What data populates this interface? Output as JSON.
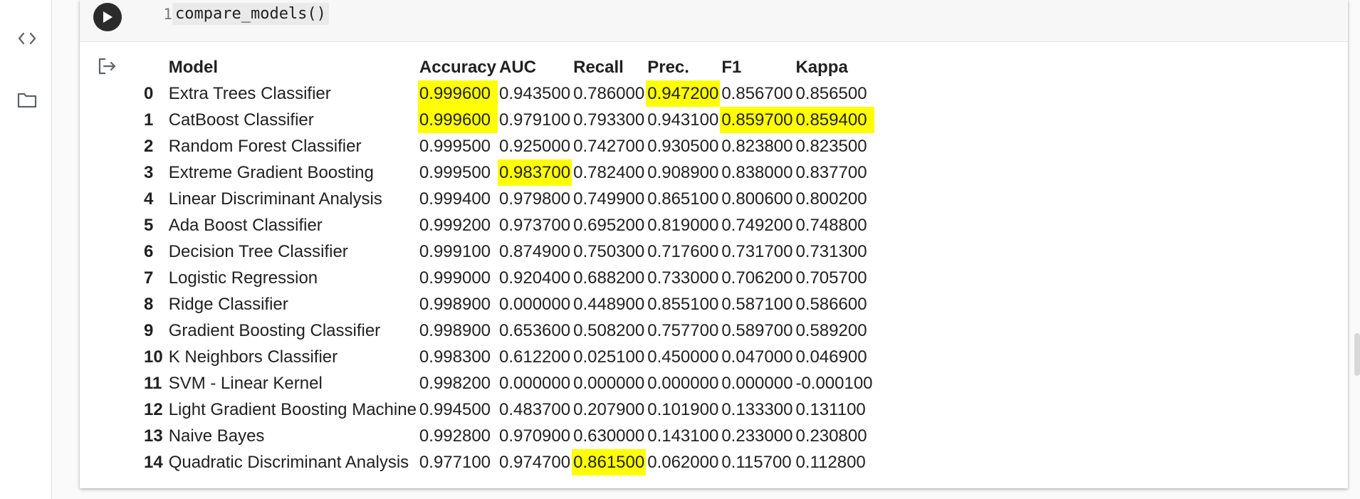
{
  "cell": {
    "line_number": "1",
    "code": "compare_models()"
  },
  "sidebar": {
    "icons": [
      "code-icon",
      "folder-icon"
    ]
  },
  "table": {
    "columns": [
      "Model",
      "Accuracy",
      "AUC",
      "Recall",
      "Prec.",
      "F1",
      "Kappa"
    ],
    "highlight_color": "#ffff00",
    "rows": [
      {
        "idx": "0",
        "model": "Extra Trees Classifier",
        "values": [
          "0.999600",
          "0.943500",
          "0.786000",
          "0.947200",
          "0.856700",
          "0.856500"
        ],
        "hl": [
          0,
          3
        ]
      },
      {
        "idx": "1",
        "model": "CatBoost Classifier",
        "values": [
          "0.999600",
          "0.979100",
          "0.793300",
          "0.943100",
          "0.859700",
          "0.859400"
        ],
        "hl": [
          0,
          4,
          5
        ]
      },
      {
        "idx": "2",
        "model": "Random Forest Classifier",
        "values": [
          "0.999500",
          "0.925000",
          "0.742700",
          "0.930500",
          "0.823800",
          "0.823500"
        ],
        "hl": []
      },
      {
        "idx": "3",
        "model": "Extreme Gradient Boosting",
        "values": [
          "0.999500",
          "0.983700",
          "0.782400",
          "0.908900",
          "0.838000",
          "0.837700"
        ],
        "hl": [
          1
        ]
      },
      {
        "idx": "4",
        "model": "Linear Discriminant Analysis",
        "values": [
          "0.999400",
          "0.979800",
          "0.749900",
          "0.865100",
          "0.800600",
          "0.800200"
        ],
        "hl": []
      },
      {
        "idx": "5",
        "model": "Ada Boost Classifier",
        "values": [
          "0.999200",
          "0.973700",
          "0.695200",
          "0.819000",
          "0.749200",
          "0.748800"
        ],
        "hl": []
      },
      {
        "idx": "6",
        "model": "Decision Tree Classifier",
        "values": [
          "0.999100",
          "0.874900",
          "0.750300",
          "0.717600",
          "0.731700",
          "0.731300"
        ],
        "hl": []
      },
      {
        "idx": "7",
        "model": "Logistic Regression",
        "values": [
          "0.999000",
          "0.920400",
          "0.688200",
          "0.733000",
          "0.706200",
          "0.705700"
        ],
        "hl": []
      },
      {
        "idx": "8",
        "model": "Ridge Classifier",
        "values": [
          "0.998900",
          "0.000000",
          "0.448900",
          "0.855100",
          "0.587100",
          "0.586600"
        ],
        "hl": []
      },
      {
        "idx": "9",
        "model": "Gradient Boosting Classifier",
        "values": [
          "0.998900",
          "0.653600",
          "0.508200",
          "0.757700",
          "0.589700",
          "0.589200"
        ],
        "hl": []
      },
      {
        "idx": "10",
        "model": "K Neighbors Classifier",
        "values": [
          "0.998300",
          "0.612200",
          "0.025100",
          "0.450000",
          "0.047000",
          "0.046900"
        ],
        "hl": []
      },
      {
        "idx": "11",
        "model": "SVM - Linear Kernel",
        "values": [
          "0.998200",
          "0.000000",
          "0.000000",
          "0.000000",
          "0.000000",
          "-0.000100"
        ],
        "hl": []
      },
      {
        "idx": "12",
        "model": "Light Gradient Boosting Machine",
        "values": [
          "0.994500",
          "0.483700",
          "0.207900",
          "0.101900",
          "0.133300",
          "0.131100"
        ],
        "hl": []
      },
      {
        "idx": "13",
        "model": "Naive Bayes",
        "values": [
          "0.992800",
          "0.970900",
          "0.630000",
          "0.143100",
          "0.233000",
          "0.230800"
        ],
        "hl": []
      },
      {
        "idx": "14",
        "model": "Quadratic Discriminant Analysis",
        "values": [
          "0.977100",
          "0.974700",
          "0.861500",
          "0.062000",
          "0.115700",
          "0.112800"
        ],
        "hl": [
          2
        ]
      }
    ]
  }
}
